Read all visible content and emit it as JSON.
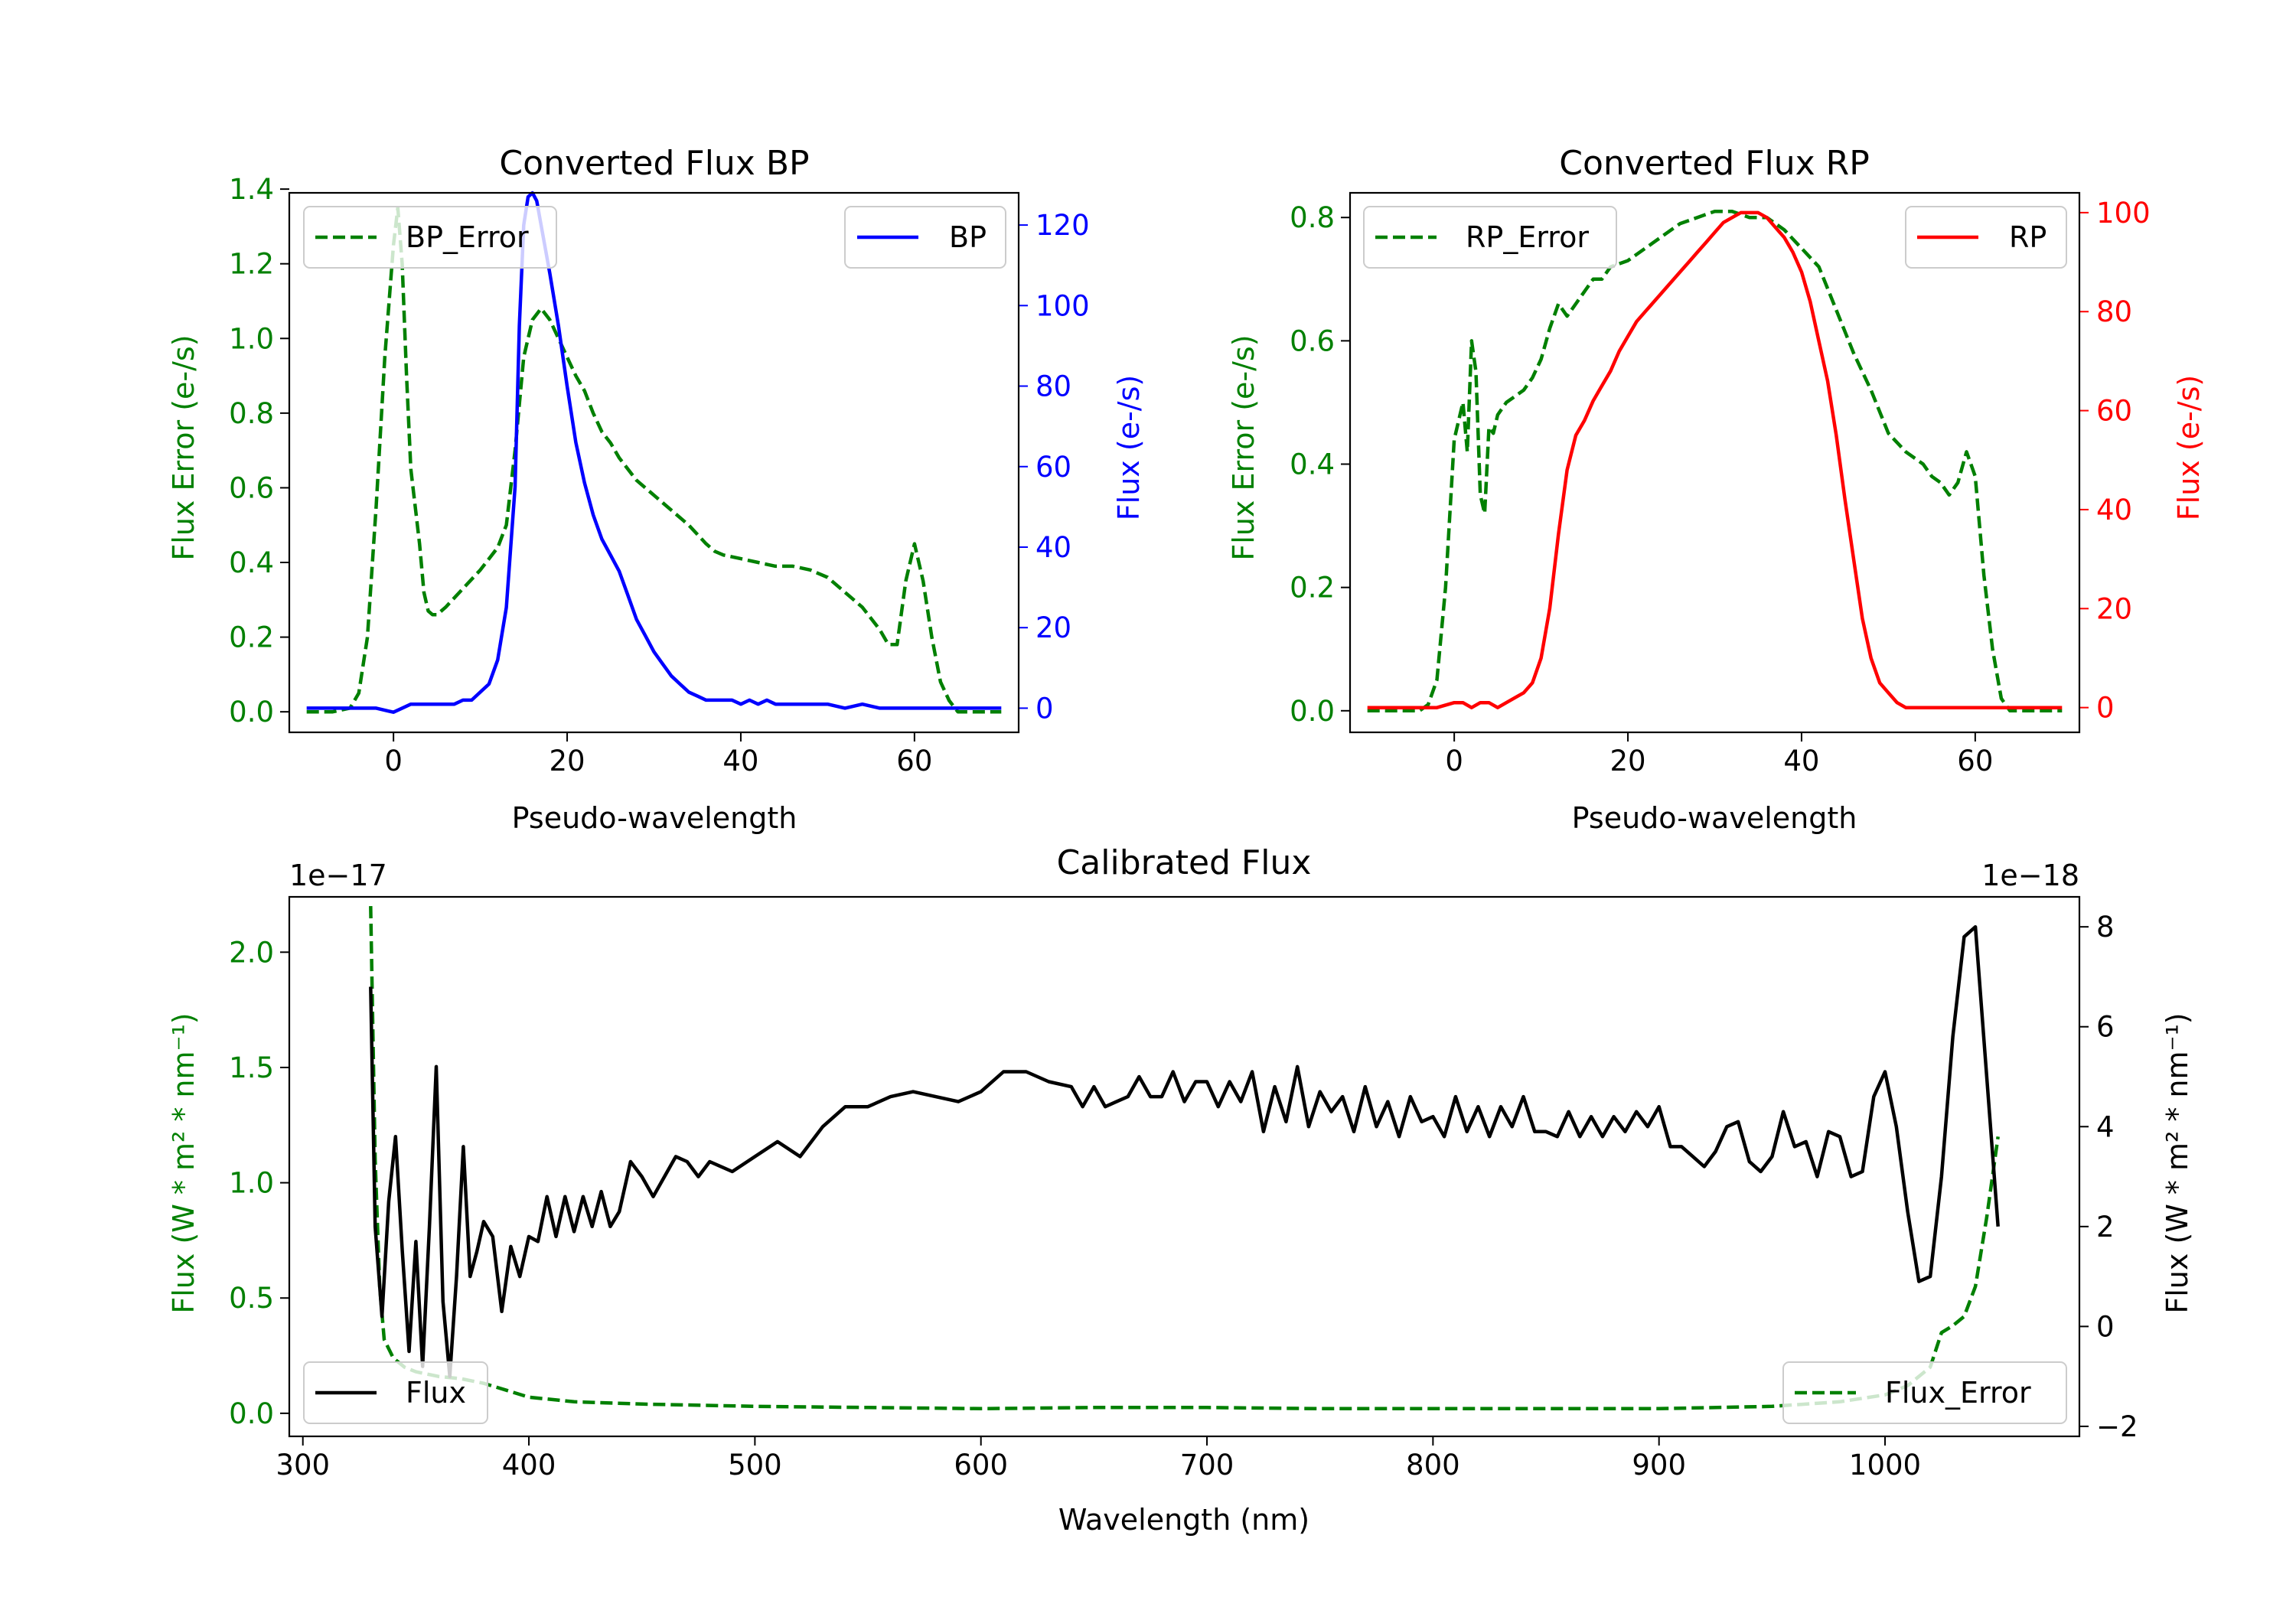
{
  "colors": {
    "green": "#008000",
    "blue": "#0000ff",
    "red": "#ff0000",
    "black": "#000000"
  },
  "chart_data": [
    {
      "id": "bp",
      "type": "line",
      "title": "Converted Flux BP",
      "xlabel": "Pseudo-wavelength",
      "xlim": [
        -12,
        72
      ],
      "xticks": [
        0,
        20,
        40,
        60
      ],
      "left_axis": {
        "label": "Flux Error (e-/s)",
        "color": "#008000",
        "ylim": [
          -0.055,
          1.39
        ],
        "ticks": [
          0.0,
          0.2,
          0.4,
          0.6,
          0.8,
          1.0,
          1.2,
          1.4
        ],
        "tick_labels": [
          "0.0",
          "0.2",
          "0.4",
          "0.6",
          "0.8",
          "1.0",
          "1.2",
          "1.4"
        ]
      },
      "right_axis": {
        "label": "Flux (e-/s)",
        "color": "#0000ff",
        "ylim": [
          -6,
          128
        ],
        "ticks": [
          0,
          20,
          40,
          60,
          80,
          100,
          120
        ],
        "tick_labels": [
          "0",
          "20",
          "40",
          "60",
          "80",
          "100",
          "120"
        ]
      },
      "series": [
        {
          "name": "BP_Error",
          "axis": "left",
          "style": "dashed",
          "color": "#008000",
          "x": [
            -10,
            -7,
            -5,
            -4,
            -3,
            -2,
            -1,
            0,
            0.5,
            1,
            1.5,
            2,
            2.5,
            3,
            3.5,
            4,
            4.5,
            5,
            6,
            8,
            10,
            12,
            13,
            14,
            15,
            16,
            17,
            18,
            19,
            20,
            21,
            22,
            23,
            24,
            25,
            26,
            28,
            30,
            32,
            34,
            36,
            37,
            38,
            40,
            42,
            44,
            46,
            48,
            50,
            52,
            54,
            56,
            57,
            58,
            59,
            60,
            61,
            62,
            63,
            64,
            65,
            66,
            68,
            70
          ],
          "y": [
            0.0,
            0.0,
            0.01,
            0.05,
            0.2,
            0.55,
            0.95,
            1.25,
            1.35,
            1.2,
            0.9,
            0.65,
            0.55,
            0.45,
            0.32,
            0.27,
            0.26,
            0.26,
            0.28,
            0.33,
            0.38,
            0.44,
            0.5,
            0.7,
            0.95,
            1.05,
            1.08,
            1.05,
            1.0,
            0.95,
            0.9,
            0.86,
            0.8,
            0.75,
            0.72,
            0.68,
            0.62,
            0.58,
            0.54,
            0.5,
            0.45,
            0.43,
            0.42,
            0.41,
            0.4,
            0.39,
            0.39,
            0.38,
            0.36,
            0.32,
            0.28,
            0.22,
            0.18,
            0.18,
            0.35,
            0.45,
            0.35,
            0.2,
            0.08,
            0.03,
            0.0,
            0.0,
            0.0,
            0.0
          ]
        },
        {
          "name": "BP",
          "axis": "right",
          "style": "solid",
          "color": "#0000ff",
          "x": [
            -10,
            -7,
            -4,
            -2,
            0,
            1,
            2,
            3,
            4,
            5,
            6,
            7,
            8,
            9,
            10,
            11,
            12,
            13,
            14,
            14.5,
            15,
            15.5,
            16,
            16.5,
            17,
            18,
            19,
            20,
            21,
            22,
            23,
            24,
            25,
            26,
            27,
            28,
            29,
            30,
            31,
            32,
            33,
            34,
            35,
            36,
            37,
            38,
            39,
            40,
            41,
            42,
            43,
            44,
            46,
            48,
            50,
            52,
            54,
            56,
            58,
            60,
            62,
            64,
            66,
            68,
            70
          ],
          "y": [
            0,
            0,
            0,
            0,
            -1,
            0,
            1,
            1,
            1,
            1,
            1,
            1,
            2,
            2,
            4,
            6,
            12,
            25,
            55,
            95,
            120,
            127,
            128,
            126,
            120,
            108,
            95,
            80,
            66,
            56,
            48,
            42,
            38,
            34,
            28,
            22,
            18,
            14,
            11,
            8,
            6,
            4,
            3,
            2,
            2,
            2,
            2,
            1,
            2,
            1,
            2,
            1,
            1,
            1,
            1,
            0,
            1,
            0,
            0,
            0,
            0,
            0,
            0,
            0,
            0
          ]
        }
      ],
      "legends": [
        {
          "entry": "BP_Error",
          "loc": "upper left"
        },
        {
          "entry": "BP",
          "loc": "upper right"
        }
      ]
    },
    {
      "id": "rp",
      "type": "line",
      "title": "Converted Flux RP",
      "xlabel": "Pseudo-wavelength",
      "xlim": [
        -12,
        72
      ],
      "xticks": [
        0,
        20,
        40,
        60
      ],
      "left_axis": {
        "label": "Flux Error (e-/s)",
        "color": "#008000",
        "ylim": [
          -0.035,
          0.84
        ],
        "ticks": [
          0.0,
          0.2,
          0.4,
          0.6,
          0.8
        ],
        "tick_labels": [
          "0.0",
          "0.2",
          "0.4",
          "0.6",
          "0.8"
        ]
      },
      "right_axis": {
        "label": "Flux (e-/s)",
        "color": "#ff0000",
        "ylim": [
          -5,
          104
        ],
        "ticks": [
          0,
          20,
          40,
          60,
          80,
          100
        ],
        "tick_labels": [
          "0",
          "20",
          "40",
          "60",
          "80",
          "100"
        ]
      },
      "series": [
        {
          "name": "RP_Error",
          "axis": "left",
          "style": "dashed",
          "color": "#008000",
          "x": [
            -10,
            -4,
            -3,
            -2,
            -1,
            0,
            1,
            1.5,
            2,
            2.5,
            3,
            3.5,
            4,
            4.5,
            5,
            6,
            7,
            8,
            9,
            10,
            11,
            12,
            13,
            14,
            15,
            16,
            17,
            18,
            20,
            22,
            24,
            26,
            28,
            30,
            32,
            34,
            36,
            38,
            40,
            42,
            44,
            46,
            48,
            50,
            52,
            54,
            55,
            56,
            57,
            58,
            59,
            60,
            61,
            62,
            63,
            64,
            65,
            66,
            68,
            70
          ],
          "y": [
            0.0,
            0.0,
            0.01,
            0.05,
            0.2,
            0.44,
            0.5,
            0.42,
            0.6,
            0.55,
            0.35,
            0.32,
            0.46,
            0.45,
            0.48,
            0.5,
            0.51,
            0.52,
            0.54,
            0.57,
            0.62,
            0.66,
            0.64,
            0.66,
            0.68,
            0.7,
            0.7,
            0.72,
            0.73,
            0.75,
            0.77,
            0.79,
            0.8,
            0.81,
            0.81,
            0.8,
            0.8,
            0.78,
            0.75,
            0.72,
            0.65,
            0.58,
            0.52,
            0.45,
            0.42,
            0.4,
            0.38,
            0.37,
            0.35,
            0.37,
            0.42,
            0.38,
            0.22,
            0.1,
            0.02,
            0.0,
            0.0,
            0.0,
            0.0,
            0.0
          ]
        },
        {
          "name": "RP",
          "axis": "right",
          "style": "solid",
          "color": "#ff0000",
          "x": [
            -10,
            -4,
            -2,
            0,
            1,
            2,
            3,
            4,
            5,
            6,
            7,
            8,
            9,
            10,
            11,
            12,
            13,
            14,
            15,
            16,
            17,
            18,
            19,
            20,
            21,
            22,
            23,
            24,
            25,
            26,
            27,
            28,
            29,
            30,
            31,
            32,
            33,
            34,
            35,
            36,
            37,
            38,
            39,
            40,
            41,
            42,
            43,
            44,
            45,
            46,
            47,
            48,
            49,
            50,
            51,
            52,
            54,
            56,
            58,
            60,
            62,
            64,
            66,
            68,
            70
          ],
          "y": [
            0,
            0,
            0,
            1,
            1,
            0,
            1,
            1,
            0,
            1,
            2,
            3,
            5,
            10,
            20,
            35,
            48,
            55,
            58,
            62,
            65,
            68,
            72,
            75,
            78,
            80,
            82,
            84,
            86,
            88,
            90,
            92,
            94,
            96,
            98,
            99,
            100,
            100,
            100,
            99,
            97,
            95,
            92,
            88,
            82,
            74,
            66,
            55,
            42,
            30,
            18,
            10,
            5,
            3,
            1,
            0,
            0,
            0,
            0,
            0,
            0,
            0,
            0,
            0,
            0
          ]
        }
      ],
      "legends": [
        {
          "entry": "RP_Error",
          "loc": "upper left"
        },
        {
          "entry": "RP",
          "loc": "upper right"
        }
      ]
    },
    {
      "id": "cal",
      "type": "line",
      "title": "Calibrated Flux",
      "xlabel": "Wavelength (nm)",
      "xlim": [
        294,
        1086
      ],
      "xticks": [
        300,
        400,
        500,
        600,
        700,
        800,
        900,
        1000
      ],
      "left_axis": {
        "label": "Flux (W * m² * nm⁻¹)",
        "color": "#008000",
        "offset_label": "1e−17",
        "ylim": [
          -0.1,
          2.24
        ],
        "ticks": [
          0.0,
          0.5,
          1.0,
          1.5,
          2.0
        ],
        "tick_labels": [
          "0.0",
          "0.5",
          "1.0",
          "1.5",
          "2.0"
        ]
      },
      "right_axis": {
        "label": "Flux (W * m² * nm⁻¹)",
        "color": "#000000",
        "offset_label": "1e−18",
        "ylim": [
          -2.2,
          8.6
        ],
        "ticks": [
          -2,
          0,
          2,
          4,
          6,
          8
        ],
        "tick_labels": [
          "−2",
          "0",
          "2",
          "4",
          "6",
          "8"
        ]
      },
      "series": [
        {
          "name": "Flux_Error",
          "axis": "left",
          "style": "dashed",
          "color": "#008000",
          "x": [
            330,
            332,
            334,
            336,
            340,
            345,
            350,
            360,
            370,
            380,
            390,
            400,
            420,
            450,
            500,
            550,
            600,
            650,
            700,
            750,
            800,
            850,
            900,
            950,
            980,
            1000,
            1010,
            1020,
            1025,
            1030,
            1035,
            1040,
            1045,
            1050
          ],
          "y": [
            2.2,
            1.1,
            0.55,
            0.32,
            0.24,
            0.2,
            0.18,
            0.16,
            0.15,
            0.13,
            0.1,
            0.07,
            0.05,
            0.04,
            0.03,
            0.025,
            0.02,
            0.025,
            0.025,
            0.02,
            0.02,
            0.02,
            0.02,
            0.03,
            0.05,
            0.08,
            0.12,
            0.2,
            0.35,
            0.38,
            0.42,
            0.55,
            0.85,
            1.2
          ]
        },
        {
          "name": "Flux",
          "axis": "right",
          "style": "solid",
          "color": "#000000",
          "x": [
            330,
            332,
            335,
            338,
            341,
            344,
            347,
            350,
            353,
            356,
            359,
            362,
            365,
            368,
            371,
            374,
            377,
            380,
            384,
            388,
            392,
            396,
            400,
            404,
            408,
            412,
            416,
            420,
            424,
            428,
            432,
            436,
            440,
            445,
            450,
            455,
            460,
            465,
            470,
            475,
            480,
            490,
            500,
            510,
            520,
            530,
            540,
            550,
            560,
            570,
            580,
            590,
            600,
            610,
            620,
            630,
            640,
            645,
            650,
            655,
            660,
            665,
            670,
            675,
            680,
            685,
            690,
            695,
            700,
            705,
            710,
            715,
            720,
            725,
            730,
            735,
            740,
            745,
            750,
            755,
            760,
            765,
            770,
            775,
            780,
            785,
            790,
            795,
            800,
            805,
            810,
            815,
            820,
            825,
            830,
            835,
            840,
            845,
            850,
            855,
            860,
            865,
            870,
            875,
            880,
            885,
            890,
            895,
            900,
            905,
            910,
            915,
            920,
            925,
            930,
            935,
            940,
            945,
            950,
            955,
            960,
            965,
            970,
            975,
            980,
            985,
            990,
            995,
            1000,
            1005,
            1010,
            1015,
            1020,
            1025,
            1030,
            1035,
            1040,
            1045,
            1050
          ],
          "y": [
            6.8,
            2.0,
            0.2,
            2.5,
            3.8,
            1.5,
            -0.5,
            1.7,
            -0.8,
            2.0,
            5.2,
            0.5,
            -1.0,
            1.0,
            3.6,
            1.0,
            1.5,
            2.1,
            1.8,
            0.3,
            1.6,
            1.0,
            1.8,
            1.7,
            2.6,
            1.8,
            2.6,
            1.9,
            2.6,
            2.0,
            2.7,
            2.0,
            2.3,
            3.3,
            3.0,
            2.6,
            3.0,
            3.4,
            3.3,
            3.0,
            3.3,
            3.1,
            3.4,
            3.7,
            3.4,
            4.0,
            4.4,
            4.4,
            4.6,
            4.7,
            4.6,
            4.5,
            4.7,
            5.1,
            5.1,
            4.9,
            4.8,
            4.4,
            4.8,
            4.4,
            4.5,
            4.6,
            5.0,
            4.6,
            4.6,
            5.1,
            4.5,
            4.9,
            4.9,
            4.4,
            4.9,
            4.5,
            5.1,
            3.9,
            4.8,
            4.1,
            5.2,
            4.0,
            4.7,
            4.3,
            4.6,
            3.9,
            4.8,
            4.0,
            4.5,
            3.8,
            4.6,
            4.1,
            4.2,
            3.8,
            4.6,
            3.9,
            4.4,
            3.8,
            4.4,
            4.0,
            4.6,
            3.9,
            3.9,
            3.8,
            4.3,
            3.8,
            4.2,
            3.8,
            4.2,
            3.9,
            4.3,
            4.0,
            4.4,
            3.6,
            3.6,
            3.4,
            3.2,
            3.5,
            4.0,
            4.1,
            3.3,
            3.1,
            3.4,
            4.3,
            3.6,
            3.7,
            3.0,
            3.9,
            3.8,
            3.0,
            3.1,
            4.6,
            5.1,
            4.0,
            2.3,
            0.9,
            1.0,
            3.0,
            5.8,
            7.8,
            8.0,
            5.0,
            2.0
          ]
        }
      ],
      "legends": [
        {
          "entry": "Flux",
          "loc": "lower left"
        },
        {
          "entry": "Flux_Error",
          "loc": "lower right"
        }
      ]
    }
  ]
}
